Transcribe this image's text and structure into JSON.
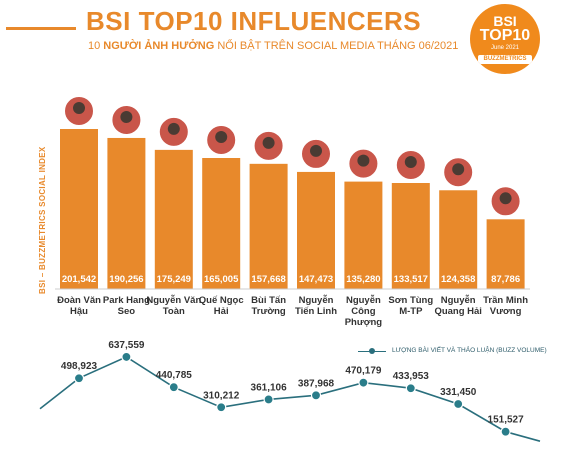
{
  "header": {
    "title": "BSI TOP10 INFLUENCERS",
    "subtitle_num": "10 ",
    "subtitle_bold": "NGƯỜI ẢNH HƯỞNG",
    "subtitle_rest": " NỔI BẬT TRÊN SOCIAL MEDIA THÁNG 06/2021"
  },
  "badge": {
    "line1": "BSI",
    "line2": "TOP10",
    "line3": "June 2021",
    "line4": "BUZZMETRICS"
  },
  "colors": {
    "accent": "#e8892b",
    "bar": "#e8892b",
    "line": "#2a6f7d",
    "marker": "#2a7d8a"
  },
  "chart_data": [
    {
      "type": "bar",
      "ylabel": "BSI – BUZZMETRICS SOCIAL INDEX",
      "categories": [
        [
          "Đoàn Văn",
          "Hậu"
        ],
        [
          "Park Hang",
          "Seo"
        ],
        [
          "Nguyễn Văn",
          "Toàn"
        ],
        [
          "Quế Ngọc",
          "Hải"
        ],
        [
          "Bùi Tấn",
          "Trường"
        ],
        [
          "Nguyễn",
          "Tiến Linh"
        ],
        [
          "Nguyễn",
          "Công",
          "Phượng"
        ],
        [
          "Sơn Tùng",
          "M-TP"
        ],
        [
          "Nguyễn",
          "Quang Hải"
        ],
        [
          "Trần Minh",
          "Vương"
        ]
      ],
      "values": [
        201542,
        190256,
        175249,
        165005,
        157668,
        147473,
        135280,
        133517,
        124358,
        87786
      ],
      "value_labels": [
        "201,542",
        "190,256",
        "175,249",
        "165,005",
        "157,668",
        "147,473",
        "135,280",
        "133,517",
        "124,358",
        "87,786"
      ],
      "ylim": [
        0,
        201542
      ]
    },
    {
      "type": "line",
      "legend": "LƯỢNG BÀI VIẾT VÀ THẢO LUẬN (BUZZ VOLUME)",
      "legend_position": "top-right",
      "values": [
        498923,
        637559,
        440785,
        310212,
        361106,
        387968,
        470179,
        433953,
        331450,
        151527
      ],
      "value_labels": [
        "498,923",
        "637,559",
        "440,785",
        "310,212",
        "361,106",
        "387,968",
        "470,179",
        "433,953",
        "331,450",
        "151,527"
      ]
    }
  ]
}
